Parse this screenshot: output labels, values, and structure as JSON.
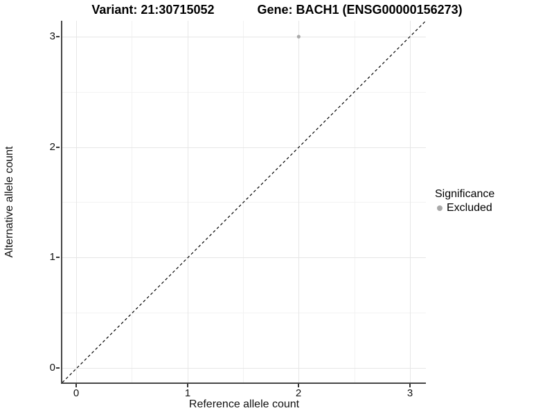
{
  "title": {
    "variant": "Variant: 21:30715052",
    "gene": "Gene: BACH1 (ENSG00000156273)"
  },
  "chart_data": {
    "type": "scatter",
    "title_left": "Variant: 21:30715052",
    "title_right": "Gene: BACH1 (ENSG00000156273)",
    "xlabel": "Reference allele count",
    "ylabel": "Alternative allele count",
    "xlim": [
      -0.12,
      3.14
    ],
    "ylim": [
      -0.13,
      3.14
    ],
    "x_ticks": [
      "0",
      "1",
      "2",
      "3"
    ],
    "y_ticks": [
      "3",
      "2",
      "1",
      "0"
    ],
    "grid": "major and minor gridlines, light gray on white",
    "legend": {
      "title": "Significance",
      "position": "right"
    },
    "series": [
      {
        "name": "Excluded",
        "color": "#a9a9a9",
        "points": [
          [
            2,
            3
          ]
        ]
      }
    ],
    "reference_line": {
      "type": "identity y=x",
      "style": "dashed",
      "color": "#000000"
    }
  }
}
